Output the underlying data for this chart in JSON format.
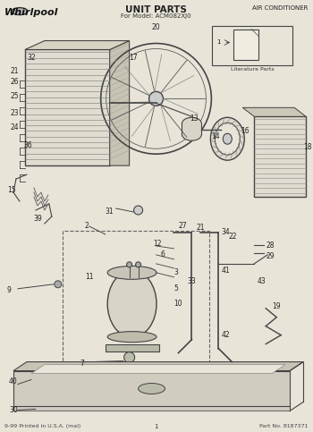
{
  "title": "UNIT PARTS",
  "subtitle": "For Model: ACM082XJ0",
  "brand": "Whirlpool",
  "top_right": "AIR CONDITIONER",
  "bottom_left": "9-99 Printed in U.S.A. (mal)",
  "bottom_center": "1",
  "bottom_right": "Part No. 8187371",
  "literature_parts_label": "Literature Parts",
  "bg_color": "#e8e4d8",
  "line_color": "#444444",
  "fig_width": 3.5,
  "fig_height": 4.83,
  "dpi": 100
}
